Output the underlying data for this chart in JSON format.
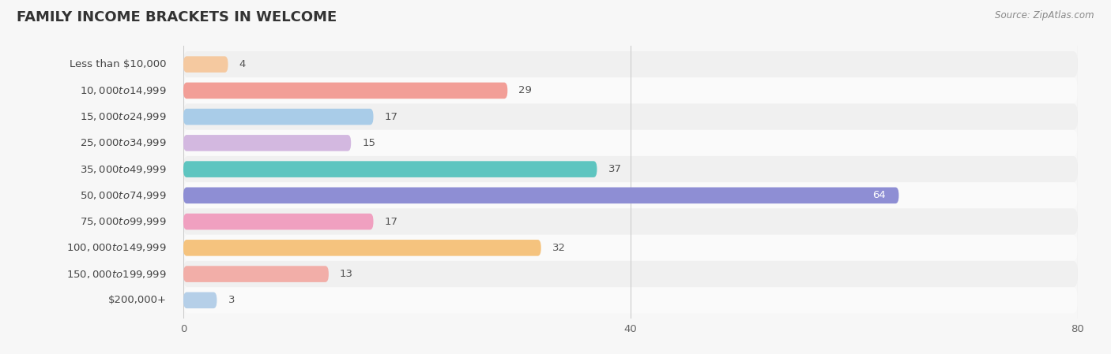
{
  "title": "FAMILY INCOME BRACKETS IN WELCOME",
  "source": "Source: ZipAtlas.com",
  "categories": [
    "Less than $10,000",
    "$10,000 to $14,999",
    "$15,000 to $24,999",
    "$25,000 to $34,999",
    "$35,000 to $49,999",
    "$50,000 to $74,999",
    "$75,000 to $99,999",
    "$100,000 to $149,999",
    "$150,000 to $199,999",
    "$200,000+"
  ],
  "values": [
    4,
    29,
    17,
    15,
    37,
    64,
    17,
    32,
    13,
    3
  ],
  "bar_colors": [
    "#f5c9a0",
    "#f29e97",
    "#a9cce8",
    "#d3b8e0",
    "#5ec5c0",
    "#8e8ed4",
    "#f0a0c0",
    "#f5c37e",
    "#f2aea8",
    "#b5cfe8"
  ],
  "xlim": [
    0,
    80
  ],
  "xticks": [
    0,
    40,
    80
  ],
  "bg_color": "#f7f7f7",
  "bar_bg_color": "#e8e8e8",
  "row_bg_colors": [
    "#f0f0f0",
    "#fafafa"
  ],
  "title_fontsize": 13,
  "label_fontsize": 9.5,
  "value_fontsize": 9.5,
  "bar_height": 0.62
}
